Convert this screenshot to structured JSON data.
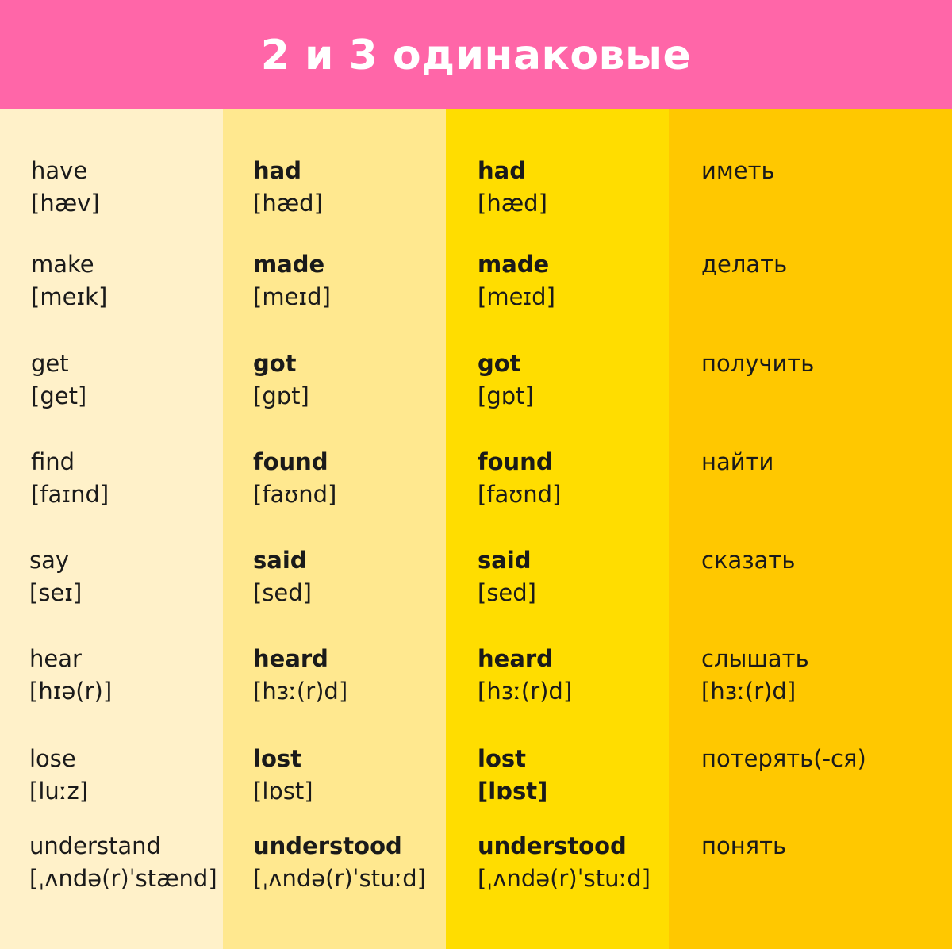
{
  "title": "2 и 3 одинаковые",
  "colors": {
    "header": "#ff66a8",
    "col1": "#fff1c9",
    "col2": "#ffe88f",
    "col3": "#ffdd00",
    "col4": "#ffc800"
  },
  "rows": [
    {
      "base": {
        "word": "have",
        "ipa": "[hæv]"
      },
      "past": {
        "word": "had",
        "ipa": "[hæd]"
      },
      "participle": {
        "word": "had",
        "ipa": "[hæd]"
      },
      "translation": {
        "word": "иметь",
        "ipa": ""
      }
    },
    {
      "base": {
        "word": "make",
        "ipa": "[meɪk]"
      },
      "past": {
        "word": "made",
        "ipa": "[meɪd]"
      },
      "participle": {
        "word": "made",
        "ipa": "[meɪd]"
      },
      "translation": {
        "word": "делать",
        "ipa": ""
      }
    },
    {
      "base": {
        "word": "get",
        "ipa": "[get]"
      },
      "past": {
        "word": "got",
        "ipa": "[gɒt]"
      },
      "participle": {
        "word": "got",
        "ipa": "[gɒt]"
      },
      "translation": {
        "word": "получить",
        "ipa": ""
      }
    },
    {
      "base": {
        "word": "find",
        "ipa": "[faɪnd]"
      },
      "past": {
        "word": "found",
        "ipa": "[faʊnd]"
      },
      "participle": {
        "word": "found",
        "ipa": "[faʊnd]"
      },
      "translation": {
        "word": "найти",
        "ipa": ""
      }
    },
    {
      "base": {
        "word": "say",
        "ipa": "[seɪ]"
      },
      "past": {
        "word": "said",
        "ipa": "[sed]"
      },
      "participle": {
        "word": "said",
        "ipa": "[sed]"
      },
      "translation": {
        "word": "сказать",
        "ipa": ""
      }
    },
    {
      "base": {
        "word": "hear",
        "ipa": "[hɪə(r)]"
      },
      "past": {
        "word": "heard",
        "ipa": "[hɜː(r)d]"
      },
      "participle": {
        "word": "heard",
        "ipa": "[hɜː(r)d]"
      },
      "translation": {
        "word": "слышать",
        "ipa": "[hɜː(r)d]"
      }
    },
    {
      "base": {
        "word": "lose",
        "ipa": "[luːz]"
      },
      "past": {
        "word": "lost",
        "ipa": "[lɒst]"
      },
      "participle": {
        "word": "lost",
        "ipa": "[lɒst]"
      },
      "translation": {
        "word": "потерять(-ся)",
        "ipa": ""
      }
    },
    {
      "base": {
        "word": "understand",
        "ipa": "[ˌʌndə(r)ˈstænd]"
      },
      "past": {
        "word": "understood",
        "ipa": "[ˌʌndə(r)ˈstuːd]"
      },
      "participle": {
        "word": "understood",
        "ipa": "[ˌʌndə(r)ˈstuːd]"
      },
      "translation": {
        "word": "понять",
        "ipa": ""
      }
    }
  ]
}
